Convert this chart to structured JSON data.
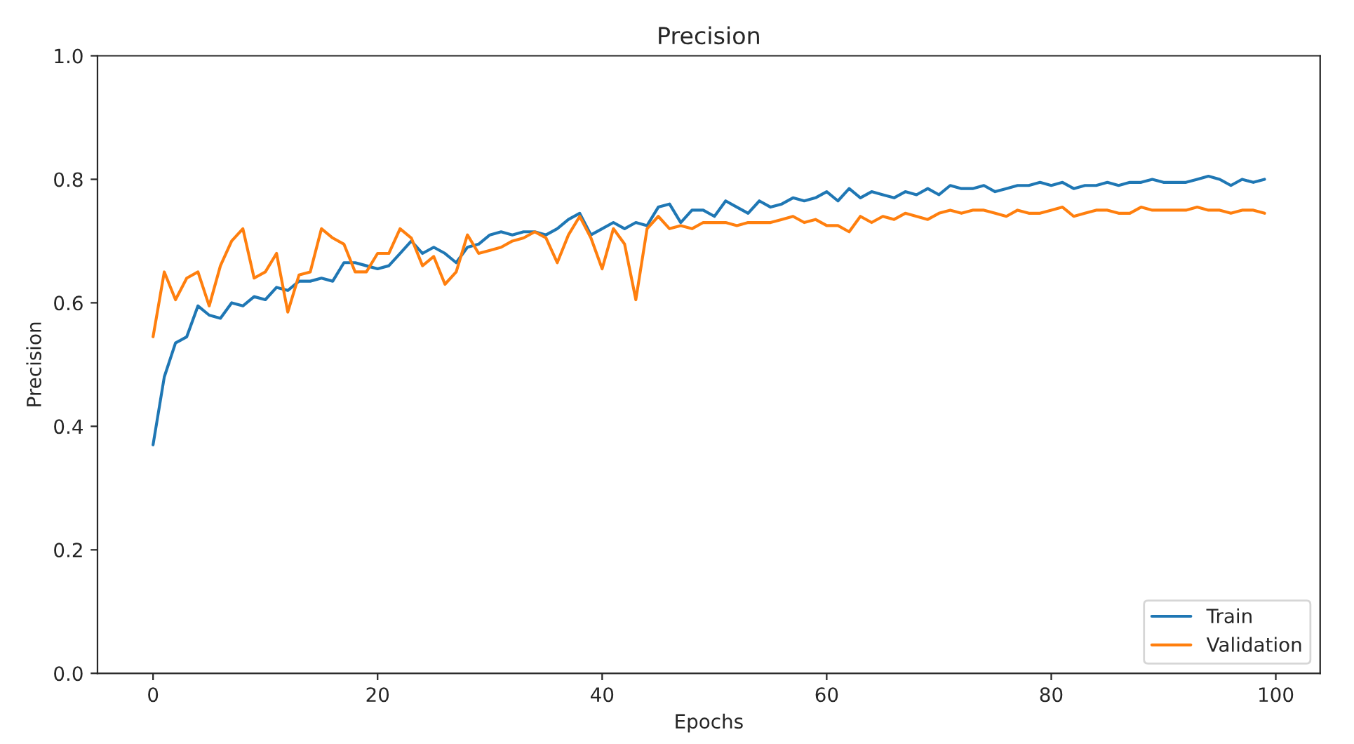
{
  "chart_data": {
    "type": "line",
    "title": "Precision",
    "xlabel": "Epochs",
    "ylabel": "Precision",
    "x": [
      0,
      1,
      2,
      3,
      4,
      5,
      6,
      7,
      8,
      9,
      10,
      11,
      12,
      13,
      14,
      15,
      16,
      17,
      18,
      19,
      20,
      21,
      22,
      23,
      24,
      25,
      26,
      27,
      28,
      29,
      30,
      31,
      32,
      33,
      34,
      35,
      36,
      37,
      38,
      39,
      40,
      41,
      42,
      43,
      44,
      45,
      46,
      47,
      48,
      49,
      50,
      51,
      52,
      53,
      54,
      55,
      56,
      57,
      58,
      59,
      60,
      61,
      62,
      63,
      64,
      65,
      66,
      67,
      68,
      69,
      70,
      71,
      72,
      73,
      74,
      75,
      76,
      77,
      78,
      79,
      80,
      81,
      82,
      83,
      84,
      85,
      86,
      87,
      88,
      89,
      90,
      91,
      92,
      93,
      94,
      95,
      96,
      97,
      98,
      99
    ],
    "series": [
      {
        "name": "Train",
        "color": "#1f77b4",
        "values": [
          0.37,
          0.48,
          0.535,
          0.545,
          0.595,
          0.58,
          0.575,
          0.6,
          0.595,
          0.61,
          0.605,
          0.625,
          0.62,
          0.635,
          0.635,
          0.64,
          0.635,
          0.665,
          0.665,
          0.66,
          0.655,
          0.66,
          0.68,
          0.7,
          0.68,
          0.69,
          0.68,
          0.665,
          0.69,
          0.695,
          0.71,
          0.715,
          0.71,
          0.715,
          0.715,
          0.71,
          0.72,
          0.735,
          0.745,
          0.71,
          0.72,
          0.73,
          0.72,
          0.73,
          0.725,
          0.755,
          0.76,
          0.73,
          0.75,
          0.75,
          0.74,
          0.765,
          0.755,
          0.745,
          0.765,
          0.755,
          0.76,
          0.77,
          0.765,
          0.77,
          0.78,
          0.765,
          0.785,
          0.77,
          0.78,
          0.775,
          0.77,
          0.78,
          0.775,
          0.785,
          0.775,
          0.79,
          0.785,
          0.785,
          0.79,
          0.78,
          0.785,
          0.79,
          0.79,
          0.795,
          0.79,
          0.795,
          0.785,
          0.79,
          0.79,
          0.795,
          0.79,
          0.795,
          0.795,
          0.8,
          0.795,
          0.795,
          0.795,
          0.8,
          0.805,
          0.8,
          0.79,
          0.8,
          0.795,
          0.8
        ]
      },
      {
        "name": "Validation",
        "color": "#ff7f0e",
        "values": [
          0.545,
          0.65,
          0.605,
          0.64,
          0.65,
          0.595,
          0.66,
          0.7,
          0.72,
          0.64,
          0.65,
          0.68,
          0.585,
          0.645,
          0.65,
          0.72,
          0.705,
          0.695,
          0.65,
          0.65,
          0.68,
          0.68,
          0.72,
          0.705,
          0.66,
          0.675,
          0.63,
          0.65,
          0.71,
          0.68,
          0.685,
          0.69,
          0.7,
          0.705,
          0.715,
          0.705,
          0.665,
          0.71,
          0.74,
          0.705,
          0.655,
          0.72,
          0.695,
          0.605,
          0.72,
          0.74,
          0.72,
          0.725,
          0.72,
          0.73,
          0.73,
          0.73,
          0.725,
          0.73,
          0.73,
          0.73,
          0.735,
          0.74,
          0.73,
          0.735,
          0.725,
          0.725,
          0.715,
          0.74,
          0.73,
          0.74,
          0.735,
          0.745,
          0.74,
          0.735,
          0.745,
          0.75,
          0.745,
          0.75,
          0.75,
          0.745,
          0.74,
          0.75,
          0.745,
          0.745,
          0.75,
          0.755,
          0.74,
          0.745,
          0.75,
          0.75,
          0.745,
          0.745,
          0.755,
          0.75,
          0.75,
          0.75,
          0.75,
          0.755,
          0.75,
          0.75,
          0.745,
          0.75,
          0.75,
          0.745
        ]
      }
    ],
    "xlim": [
      -4.95,
      103.95
    ],
    "xticks": [
      0,
      20,
      40,
      60,
      80,
      100
    ],
    "ylim": [
      0.0,
      1.0
    ],
    "yticks": [
      {
        "value": 0.0,
        "label": "0.0"
      },
      {
        "value": 0.2,
        "label": "0.2"
      },
      {
        "value": 0.4,
        "label": "0.4"
      },
      {
        "value": 0.6,
        "label": "0.6"
      },
      {
        "value": 0.8,
        "label": "0.8"
      },
      {
        "value": 1.0,
        "label": "1.0"
      }
    ],
    "legend": "bottom right",
    "grid": false
  }
}
